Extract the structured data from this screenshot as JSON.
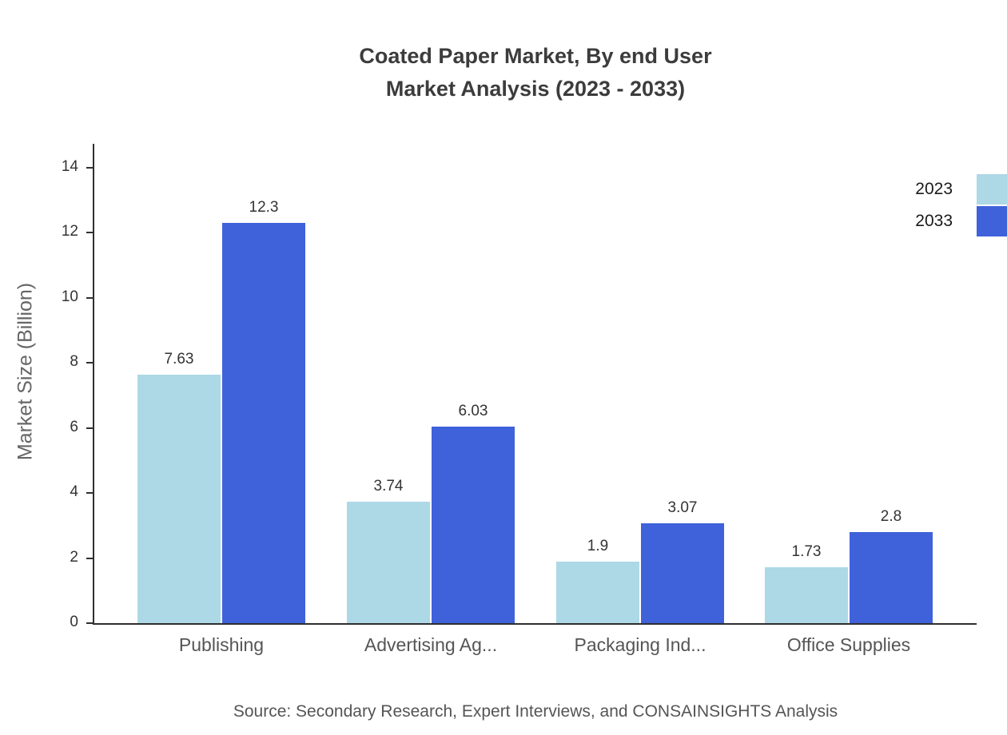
{
  "title": {
    "line1": "Coated Paper Market, By end User",
    "line2": "Market Analysis (2023 - 2033)"
  },
  "ylabel": "Market Size (Billion)",
  "source": "Source: Secondary Research, Expert Interviews, and CONSAINSIGHTS Analysis",
  "chart_data": {
    "type": "bar",
    "title": "Coated Paper Market, By end User Market Analysis (2023 - 2033)",
    "categories": [
      "Publishing",
      "Advertising Ag...",
      "Packaging Ind...",
      "Office Supplies"
    ],
    "series": [
      {
        "name": "2023",
        "color": "#add8e6",
        "values": [
          7.63,
          3.74,
          1.9,
          1.73
        ],
        "value_labels": [
          "7.63",
          "3.74",
          "1.9",
          "1.73"
        ]
      },
      {
        "name": "2033",
        "color": "#3f62da",
        "values": [
          12.3,
          6.03,
          3.07,
          2.8
        ],
        "value_labels": [
          "12.3",
          "6.03",
          "3.07",
          "2.8"
        ]
      }
    ],
    "xlabel": "",
    "ylabel": "Market Size (Billion)",
    "ylim": [
      0,
      14
    ],
    "ytick_step": 2,
    "grid": false,
    "legend_position": "top-right"
  }
}
